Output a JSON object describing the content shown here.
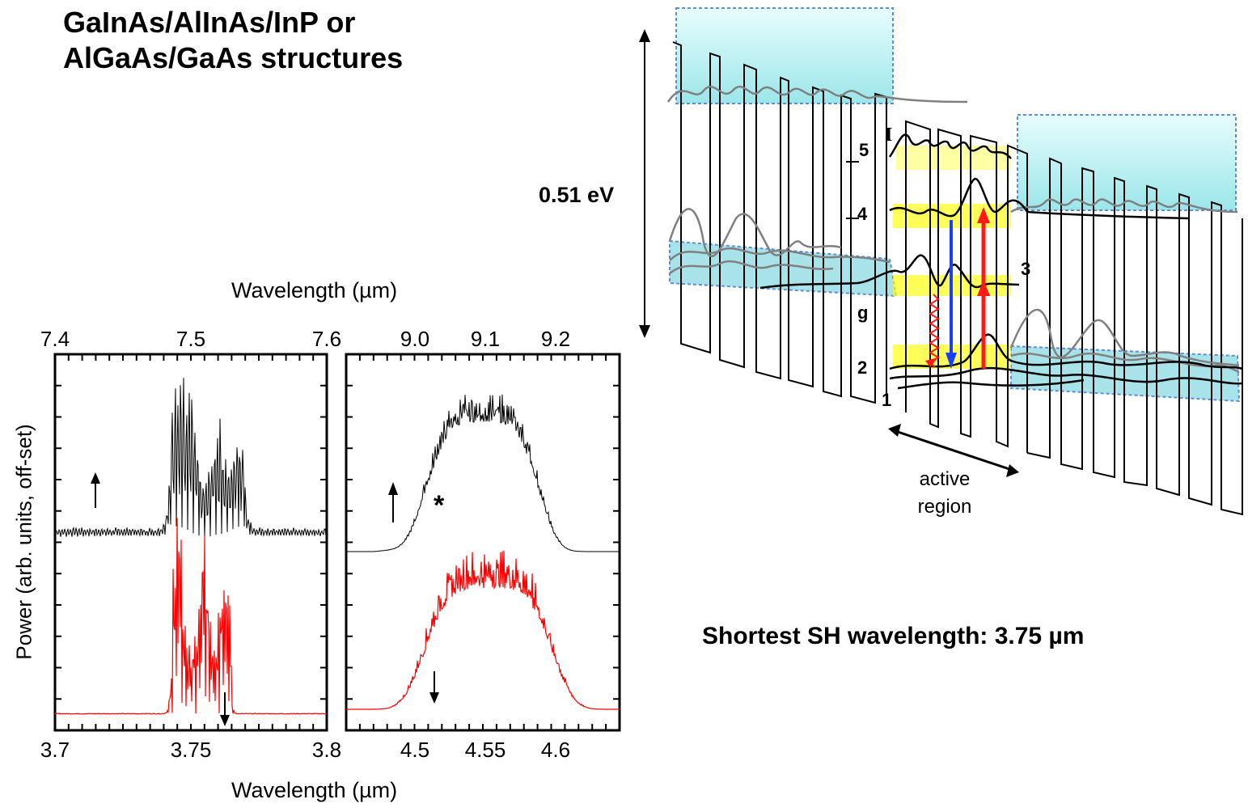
{
  "title": {
    "line1": "GaInAs/AlInAs/InP or",
    "line2": "AlGaAs/GaAs structures"
  },
  "band_diagram": {
    "energy_span_label": "0.51 eV",
    "levels": [
      "5",
      "4",
      "3",
      "g",
      "2",
      "1"
    ],
    "injector_label": "I",
    "active_region_label_1": "active",
    "active_region_label_2": "region"
  },
  "note": "Shortest SH wavelength: 3.75 µm",
  "chart_data": [
    {
      "type": "line",
      "panel": "left",
      "ylabel": "Power  (arb. units, off-set)",
      "x_top": {
        "label": "Wavelength  (µm)",
        "ticks": [
          "7.4",
          "7.5",
          "7.6"
        ],
        "range": [
          7.4,
          7.6
        ]
      },
      "x_bottom": {
        "label": "Wavelength  (µm)",
        "ticks": [
          "3.7",
          "3.75",
          "3.8"
        ],
        "range": [
          3.7,
          3.8
        ]
      },
      "series": [
        {
          "color": "#000000",
          "axis": "top",
          "baseline": 0.2,
          "peaks": [
            [
              7.49,
              0.55
            ],
            [
              7.5,
              0.35
            ],
            [
              7.52,
              0.3
            ],
            [
              7.535,
              0.32
            ]
          ]
        },
        {
          "color": "#ff0000",
          "axis": "bottom",
          "baseline": 0.02,
          "peaks": [
            [
              3.745,
              0.4
            ],
            [
              3.755,
              0.3
            ],
            [
              3.762,
              0.3
            ]
          ]
        }
      ]
    },
    {
      "type": "line",
      "panel": "right",
      "x_top": {
        "label": "Wavelength  (µm)",
        "ticks": [
          "9.0",
          "9.1",
          "9.2"
        ],
        "range": [
          8.85,
          9.3
        ]
      },
      "x_bottom": {
        "label": "Wavelength  (µm)",
        "ticks": [
          "4.5",
          "4.55",
          "4.6"
        ],
        "range": [
          4.43,
          4.65
        ]
      },
      "annotation": "*",
      "series": [
        {
          "color": "#000000",
          "axis": "top",
          "baseline": 0.2,
          "peak_center": 9.1,
          "peak_height": 0.55
        },
        {
          "color": "#ff0000",
          "axis": "bottom",
          "baseline": 0.02,
          "peak_center": 4.55,
          "peak_height": 0.5
        }
      ]
    }
  ]
}
